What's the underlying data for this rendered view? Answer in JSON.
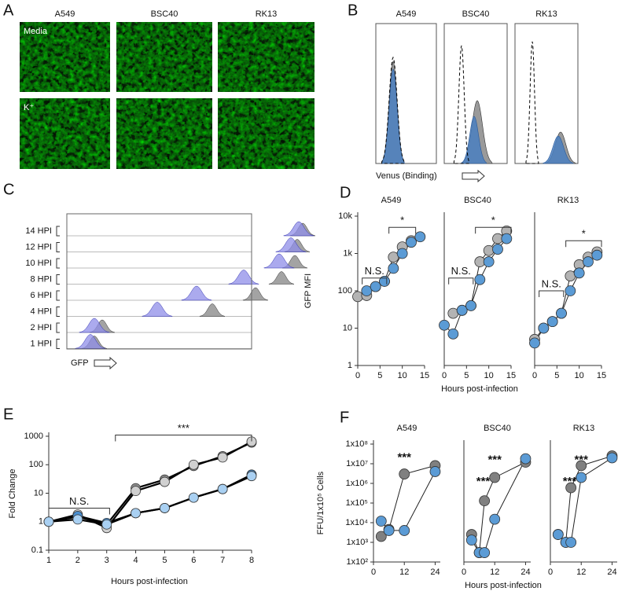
{
  "figure": {
    "panel_labels": [
      "A",
      "B",
      "C",
      "D",
      "E",
      "F"
    ],
    "a": {
      "columns": [
        "A549",
        "BSC40",
        "RK13"
      ],
      "rows": [
        "Media",
        "K⁺"
      ]
    },
    "b": {
      "titles": [
        "A549",
        "BSC40",
        "RK13"
      ],
      "xlabel": "Venus (Binding)"
    },
    "c": {
      "labels": [
        "14 HPI",
        "12 HPI",
        "10 HPI",
        "8 HPI",
        "6 HPI",
        "4 HPI",
        "2 HPI",
        "1 HPI"
      ],
      "xlabel": "GFP"
    }
  },
  "chart_data": [
    {
      "type": "line",
      "title": "A549",
      "ylabel": "GFP MFI",
      "log_y": true,
      "xlim": [
        0,
        15
      ],
      "xticks": [
        0,
        5,
        10,
        15
      ],
      "ylim": [
        1,
        10000
      ],
      "yticks": [
        1,
        10,
        100,
        {
          "value": 1000,
          "label": "1k"
        },
        {
          "value": 10000,
          "label": "10k"
        }
      ],
      "series": [
        {
          "color": "#b3b3b3",
          "x": [
            0,
            2,
            4,
            6,
            8,
            10,
            12
          ],
          "values": [
            70,
            75,
            130,
            180,
            800,
            1500,
            2200
          ]
        },
        {
          "color": "#5b9bd5",
          "x": [
            2,
            4,
            6,
            8,
            10,
            12,
            14
          ],
          "values": [
            100,
            130,
            180,
            400,
            1000,
            2000,
            2800
          ]
        }
      ],
      "annotations": [
        "N.S.",
        "*"
      ]
    },
    {
      "type": "line",
      "title": "BSC40",
      "xlabel": "Hours post-infection",
      "log_y": true,
      "xlim": [
        0,
        15
      ],
      "xticks": [
        0,
        5,
        10,
        15
      ],
      "ylim": [
        1,
        10000
      ],
      "series": [
        {
          "color": "#b3b3b3",
          "x": [
            2,
            4,
            6,
            8,
            10,
            12,
            14
          ],
          "values": [
            25,
            30,
            40,
            600,
            1200,
            2500,
            4000
          ]
        },
        {
          "color": "#5b9bd5",
          "x": [
            0,
            2,
            4,
            6,
            8,
            10,
            12,
            14
          ],
          "values": [
            12,
            7,
            30,
            40,
            200,
            600,
            1300,
            2500
          ]
        }
      ],
      "annotations": [
        "N.S.",
        "*"
      ]
    },
    {
      "type": "line",
      "title": "RK13",
      "log_y": true,
      "xlim": [
        0,
        15
      ],
      "xticks": [
        0,
        5,
        10,
        15
      ],
      "ylim": [
        1,
        10000
      ],
      "series": [
        {
          "color": "#b3b3b3",
          "x": [
            0,
            2,
            4,
            6,
            8,
            10,
            12,
            14
          ],
          "values": [
            5,
            10,
            15,
            25,
            250,
            500,
            800,
            1100
          ]
        },
        {
          "color": "#5b9bd5",
          "x": [
            0,
            2,
            4,
            6,
            8,
            10,
            12,
            14
          ],
          "values": [
            4,
            10,
            15,
            25,
            100,
            300,
            600,
            900
          ]
        }
      ],
      "annotations": [
        "N.S.",
        "*"
      ]
    },
    {
      "type": "line",
      "ylabel": "Fold Change",
      "xlabel": "Hours post-infection",
      "log_y": true,
      "xlim": [
        1,
        8
      ],
      "xticks": [
        1,
        2,
        3,
        4,
        5,
        6,
        7,
        8
      ],
      "ylim": [
        0.1,
        1000
      ],
      "yticks": [
        0.1,
        1,
        10,
        100,
        1000
      ],
      "series": [
        {
          "color": "#8c8c8c",
          "x": [
            1,
            2,
            3,
            4,
            5,
            6,
            7,
            8
          ],
          "values": [
            1,
            1.5,
            0.8,
            15,
            30,
            90,
            200,
            600
          ]
        },
        {
          "color": "#d0d0d0",
          "x": [
            1,
            2,
            3,
            4,
            5,
            6,
            7,
            8
          ],
          "values": [
            1,
            1.8,
            0.6,
            12,
            25,
            100,
            180,
            650
          ]
        },
        {
          "color": "#4a8fd0",
          "x": [
            1,
            2,
            3,
            4,
            5,
            6,
            7,
            8
          ],
          "values": [
            1,
            1.6,
            0.9,
            2,
            3,
            7,
            14,
            45
          ]
        },
        {
          "color": "#a9d0f2",
          "x": [
            1,
            2,
            3,
            4,
            5,
            6,
            7,
            8
          ],
          "values": [
            1,
            1.2,
            0.8,
            2,
            3,
            7,
            14,
            40
          ]
        }
      ],
      "annotations": [
        "N.S.",
        "***"
      ]
    },
    {
      "type": "line",
      "title": "A549",
      "ylabel": "FFU/1x10⁵ Cells",
      "log_y": true,
      "xlim": [
        0,
        26
      ],
      "xticks": [
        0,
        12,
        24
      ],
      "ylim": [
        100,
        100000000
      ],
      "yticks": [
        {
          "value": 100,
          "label": "1x10²"
        },
        {
          "value": 1000,
          "label": "1x10³"
        },
        {
          "value": 10000,
          "label": "1x10⁴"
        },
        {
          "value": 100000,
          "label": "1x10⁵"
        },
        {
          "value": 1000000,
          "label": "1x10⁶"
        },
        {
          "value": 10000000,
          "label": "1x10⁷"
        },
        {
          "value": 100000000,
          "label": "1x10⁸"
        }
      ],
      "series": [
        {
          "color": "#808080",
          "x": [
            3,
            6,
            12,
            24
          ],
          "values": [
            2000,
            4500,
            3000000,
            8000000
          ]
        },
        {
          "color": "#5b9bd5",
          "x": [
            3,
            6,
            12,
            24
          ],
          "values": [
            12000,
            4000,
            4000,
            4000000
          ]
        }
      ],
      "annotations": [
        "***"
      ]
    },
    {
      "type": "line",
      "title": "BSC40",
      "xlabel": "Hours post-infection",
      "log_y": true,
      "xlim": [
        0,
        26
      ],
      "xticks": [
        0,
        12,
        24
      ],
      "ylim": [
        100,
        100000000
      ],
      "series": [
        {
          "color": "#808080",
          "x": [
            3,
            6,
            8,
            12,
            24
          ],
          "values": [
            2500,
            300,
            130000,
            2000000,
            12000000
          ]
        },
        {
          "color": "#5b9bd5",
          "x": [
            3,
            6,
            8,
            12,
            24
          ],
          "values": [
            1300,
            300,
            300,
            15000,
            18000000
          ]
        }
      ],
      "annotations": [
        "***",
        "***"
      ]
    },
    {
      "type": "line",
      "title": "RK13",
      "log_y": true,
      "xlim": [
        0,
        26
      ],
      "xticks": [
        0,
        12,
        24
      ],
      "ylim": [
        100,
        100000000
      ],
      "series": [
        {
          "color": "#808080",
          "x": [
            3,
            6,
            8,
            12,
            24
          ],
          "values": [
            2500,
            1000,
            600000,
            8000000,
            25000000
          ]
        },
        {
          "color": "#5b9bd5",
          "x": [
            3,
            6,
            8,
            12,
            24
          ],
          "values": [
            2500,
            1000,
            1000,
            2000000,
            20000000
          ]
        }
      ],
      "annotations": [
        "***",
        "***"
      ]
    }
  ]
}
